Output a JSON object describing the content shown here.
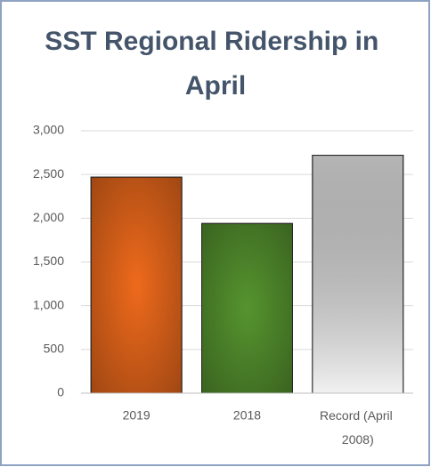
{
  "chart_data": {
    "type": "bar",
    "title": "SST Regional Ridership in April",
    "categories": [
      "2019",
      "2018",
      "Record (April 2008)"
    ],
    "values": [
      2470,
      1940,
      2720
    ],
    "colors": [
      "#ee6a1c",
      "#56942f",
      "#dcdcdc"
    ],
    "ylim": [
      0,
      3000
    ],
    "yticks": [
      0,
      500,
      {
        "value": 1000,
        "label": "1,000"
      },
      {
        "value": 1500,
        "label": "1,500"
      },
      {
        "value": 2000,
        "label": "2,000"
      },
      {
        "value": 2500,
        "label": "2,500"
      },
      {
        "value": 3000,
        "label": "3,000"
      }
    ],
    "grid": true
  }
}
